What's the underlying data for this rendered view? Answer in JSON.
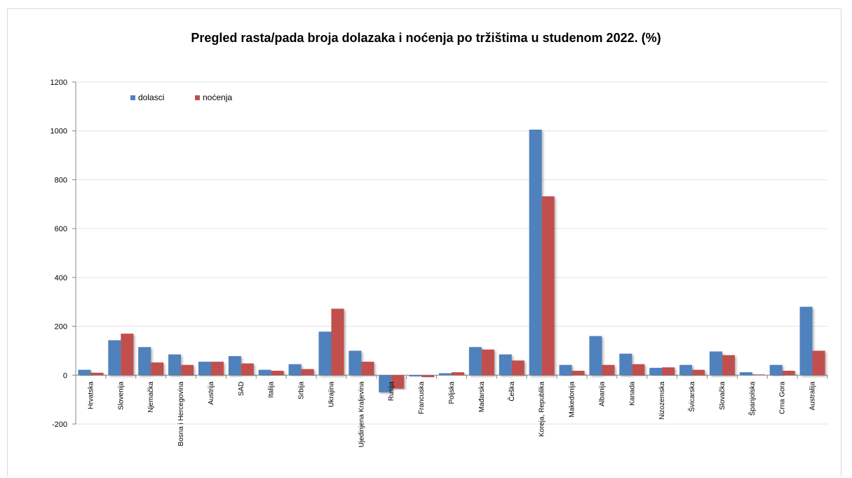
{
  "chart_data": {
    "type": "bar",
    "title": "Pregled rasta/pada broja dolazaka i noćenja po tržištima u studenom 2022. (%)",
    "xlabel": "",
    "ylabel": "",
    "ylim": [
      -200,
      1200
    ],
    "yticks": [
      -200,
      0,
      200,
      400,
      600,
      800,
      1000,
      1200
    ],
    "grid": true,
    "legend_position": "top-left",
    "categories": [
      "Hrvatska",
      "Slovenija",
      "Njemačka",
      "Bosna i Hercegovina",
      "Austrija",
      "SAD",
      "Italija",
      "Srbija",
      "Ukrajina",
      "Ujedinjena Kraljevina",
      "Rusija",
      "Francuska",
      "Poljska",
      "Mađarska",
      "Češka",
      "Koreja, Republika",
      "Makedonija",
      "Albanija",
      "Kanada",
      "Nizozemska",
      "Švicarska",
      "Slovačka",
      "Španjolska",
      "Crna Gora",
      "Australija"
    ],
    "series": [
      {
        "name": "dolasci",
        "color": "#4f81bd",
        "values": [
          22,
          143,
          115,
          85,
          55,
          78,
          22,
          45,
          178,
          100,
          -70,
          -5,
          8,
          115,
          85,
          1005,
          42,
          160,
          88,
          30,
          42,
          97,
          12,
          42,
          280
        ]
      },
      {
        "name": "noćenja",
        "color": "#c0504d",
        "values": [
          10,
          170,
          52,
          42,
          55,
          48,
          18,
          25,
          272,
          55,
          -55,
          -8,
          12,
          105,
          60,
          732,
          18,
          42,
          45,
          32,
          22,
          82,
          3,
          18,
          100
        ]
      }
    ]
  }
}
